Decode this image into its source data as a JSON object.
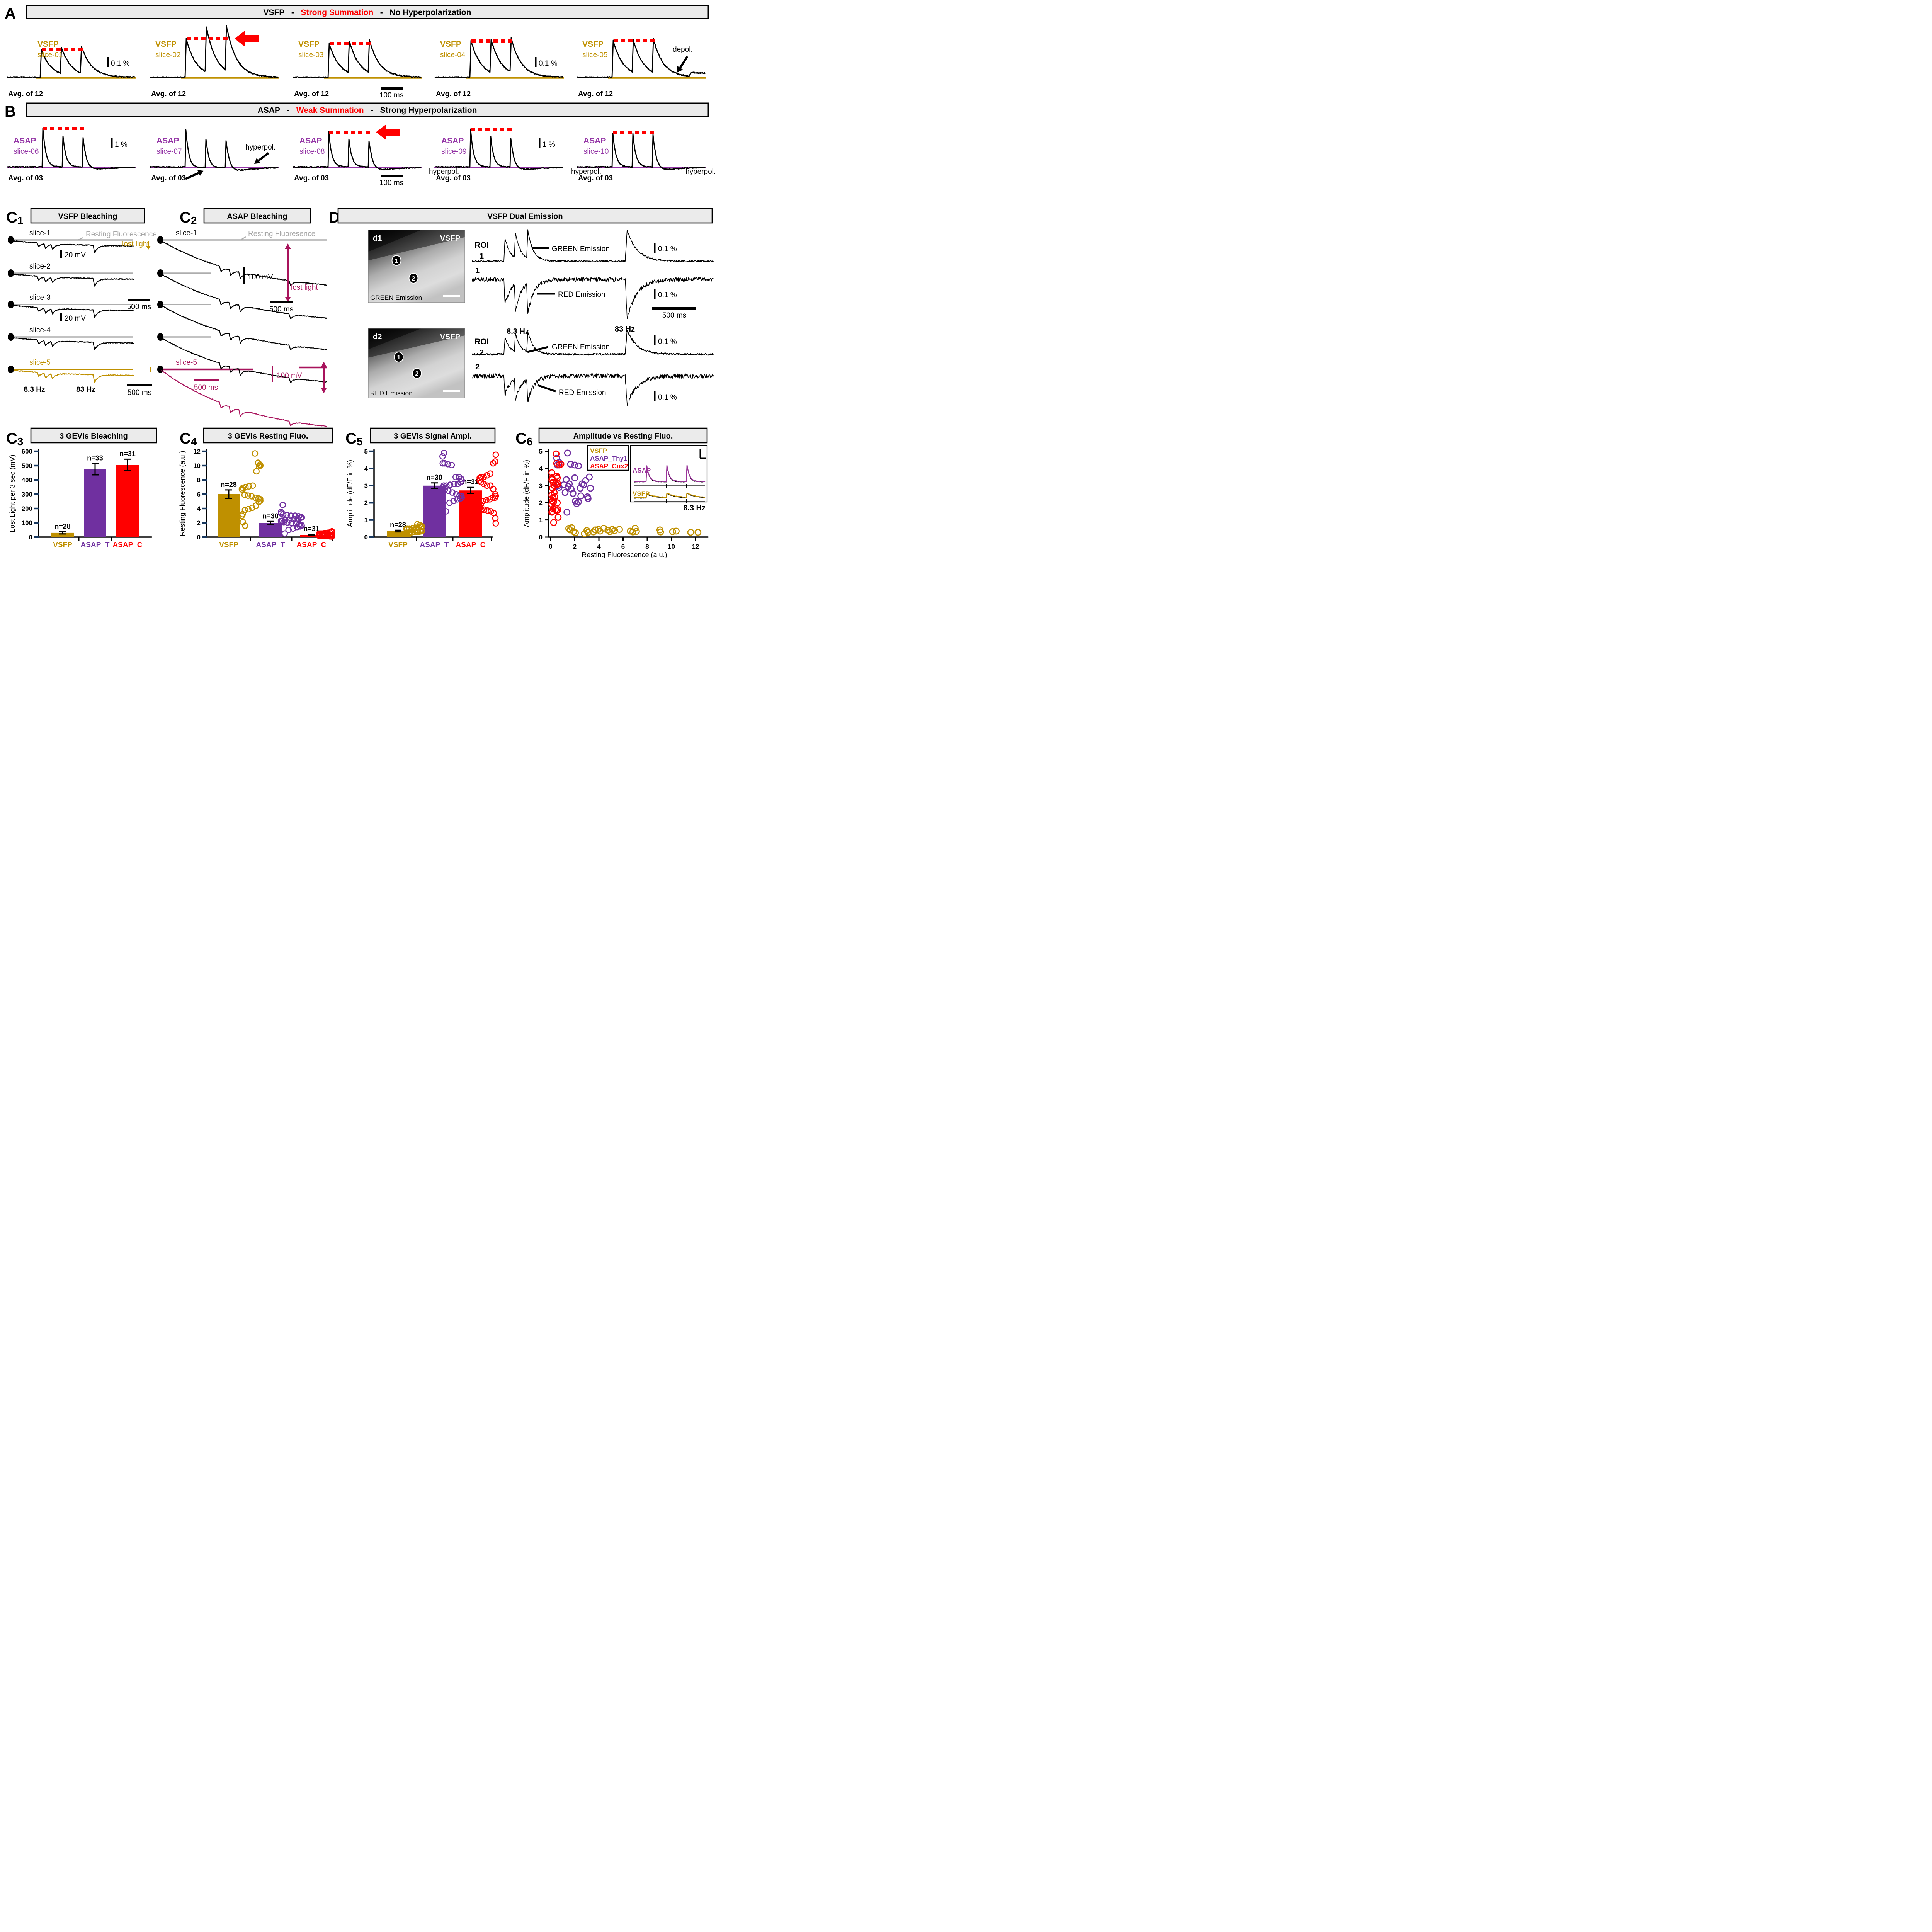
{
  "colors": {
    "vsfp_gold": "#BF9000",
    "asap_label_purple": "#9333A5",
    "asap_bar_purple": "#7030A0",
    "asap_cux2_red": "#FF0000",
    "magenta": "#A8135C",
    "accent_red": "#FF0000",
    "resting_gray": "#ADADAD",
    "gray_text": "#A6A6A6",
    "header_bg": "#EBEBEB",
    "axis_tick_navy": "#17375E",
    "inset_asap_purple": "#993399",
    "black": "#000000",
    "white": "#FFFFFF"
  },
  "panelA": {
    "label": "A",
    "header_parts": [
      {
        "t": "VSFP",
        "color": "#000000"
      },
      {
        "t": "   -   ",
        "color": "#000000"
      },
      {
        "t": "Strong Summation",
        "color": "#FF0000"
      },
      {
        "t": "   -   ",
        "color": "#000000"
      },
      {
        "t": "No Hyperpolarization",
        "color": "#000000"
      }
    ],
    "cells": [
      {
        "gevi": "VSFP",
        "slice": "slice-01",
        "avg": "Avg. of 12",
        "amp_bar": "0.1 %"
      },
      {
        "gevi": "VSFP",
        "slice": "slice-02",
        "avg": "Avg. of 12",
        "red_arrow": true
      },
      {
        "gevi": "VSFP",
        "slice": "slice-03",
        "avg": "Avg. of 12",
        "time_bar": "100 ms"
      },
      {
        "gevi": "VSFP",
        "slice": "slice-04",
        "avg": "Avg. of 12",
        "amp_bar": "0.1 %"
      },
      {
        "gevi": "VSFP",
        "slice": "slice-05",
        "avg": "Avg. of 12",
        "annotation": "depol."
      }
    ]
  },
  "panelB": {
    "label": "B",
    "header_parts": [
      {
        "t": "ASAP",
        "color": "#000000"
      },
      {
        "t": "   -   ",
        "color": "#000000"
      },
      {
        "t": "Weak Summation",
        "color": "#FF0000"
      },
      {
        "t": "   -   ",
        "color": "#000000"
      },
      {
        "t": "Strong Hyperpolarization",
        "color": "#000000"
      }
    ],
    "cells": [
      {
        "gevi": "ASAP",
        "slice": "slice-06",
        "avg": "Avg. of 03",
        "amp_bar": "1 %"
      },
      {
        "gevi": "ASAP",
        "slice": "slice-07",
        "avg": "Avg. of 03",
        "annotation": "hyperpol."
      },
      {
        "gevi": "ASAP",
        "slice": "slice-08",
        "avg": "Avg. of 03",
        "annotation": "hyperpol.",
        "red_arrow": true,
        "time_bar": "100 ms"
      },
      {
        "gevi": "ASAP",
        "slice": "slice-09",
        "avg": "Avg. of 03",
        "annotation": "hyperpol.",
        "amp_bar": "1 %"
      },
      {
        "gevi": "ASAP",
        "slice": "slice-10",
        "avg": "Avg. of 03",
        "annotation": "hyperpol."
      }
    ]
  },
  "panelC1": {
    "label": "C",
    "sub": "1",
    "title": "VSFP Bleaching",
    "slices": [
      "slice-1",
      "slice-2",
      "slice-3",
      "slice-4",
      "slice-5"
    ],
    "resting": "Resting Fluorescence",
    "lost_light": "lost light",
    "scale_mv": "20 mV",
    "scale_ms": "500 ms",
    "freq_low": "8.3 Hz",
    "freq_high": "83 Hz"
  },
  "panelC2": {
    "label": "C",
    "sub": "2",
    "title": "ASAP Bleaching",
    "slice_top": "slice-1",
    "slice_bottom": "slice-5",
    "resting": "Resting Fluoresence",
    "lost_light": "lost light",
    "scale_mv": "100 mV",
    "scale_ms": "500 ms"
  },
  "panelD": {
    "label": "D",
    "title": "VSFP Dual Emission",
    "images": [
      {
        "tag": "d1",
        "gevi": "VSFP",
        "caption": "GREEN Emission"
      },
      {
        "tag": "d2",
        "gevi": "VSFP",
        "caption": "RED Emission"
      }
    ],
    "roi_word": "ROI",
    "rois": [
      "1",
      "2"
    ],
    "green": "GREEN Emission",
    "red": "RED Emission",
    "pct": "0.1 %",
    "ms": "500 ms",
    "freq_low": "8.3 Hz",
    "freq_high": "83 Hz"
  },
  "chart_data": [
    {
      "id": "C3",
      "label": "C",
      "sub": "3",
      "type": "bar",
      "title": "3 GEVIs Bleaching",
      "ylabel": "Lost Light per 3 sec (mV)",
      "ylim": [
        0,
        600
      ],
      "yticks": [
        "0",
        "100",
        "200",
        "300",
        "400",
        "500",
        "600"
      ],
      "categories": [
        "VSFP",
        "ASAP_T",
        "ASAP_C"
      ],
      "cat_colors": [
        "#BF9000",
        "#7030A0",
        "#FF0000"
      ],
      "values": [
        30,
        475,
        505
      ],
      "errors": [
        8,
        40,
        40
      ],
      "n_labels": [
        "n=28",
        "n=33",
        "n=31"
      ]
    },
    {
      "id": "C4",
      "label": "C",
      "sub": "4",
      "type": "bar+scatter",
      "title": "3 GEVIs Resting Fluo.",
      "ylabel": "Resting Fluorescence (a.u.)",
      "ylim": [
        0,
        12
      ],
      "yticks": [
        "0",
        "2",
        "4",
        "6",
        "8",
        "10",
        "12"
      ],
      "categories": [
        "VSFP",
        "ASAP_T",
        "ASAP_C"
      ],
      "cat_colors": [
        "#BF9000",
        "#7030A0",
        "#FF0000"
      ],
      "values": [
        6,
        2,
        0.3
      ],
      "errors": [
        0.6,
        0.2,
        0.1
      ],
      "n_labels": [
        "n=28",
        "n=30",
        "n=31"
      ],
      "points": [
        [
          11.7,
          10.4,
          10.15,
          10.0,
          9.9,
          9.2,
          7.2,
          7.1,
          7.0,
          6.9,
          6.7,
          6.6,
          5.9,
          5.8,
          5.7,
          5.5,
          5.4,
          5.3,
          5.1,
          4.9,
          4.4,
          4.1,
          3.9,
          3.8,
          3.2,
          3.0,
          2.1,
          1.6
        ],
        [
          4.5,
          3.5,
          3.3,
          3.2,
          3.1,
          3.0,
          3.0,
          2.9,
          2.8,
          2.75,
          2.7,
          2.6,
          2.5,
          2.45,
          2.4,
          2.3,
          2.25,
          2.2,
          2.1,
          2.05,
          2.0,
          1.9,
          1.8,
          1.7,
          1.6,
          1.5,
          1.4,
          1.2,
          1.0,
          0.5
        ],
        [
          0.8,
          0.7,
          0.65,
          0.6,
          0.55,
          0.5,
          0.5,
          0.45,
          0.45,
          0.4,
          0.4,
          0.38,
          0.35,
          0.35,
          0.3,
          0.3,
          0.3,
          0.28,
          0.25,
          0.25,
          0.22,
          0.2,
          0.2,
          0.2,
          0.18,
          0.15,
          0.15,
          0.12,
          0.1,
          0.1,
          0.08
        ]
      ]
    },
    {
      "id": "C5",
      "label": "C",
      "sub": "5",
      "type": "bar+scatter",
      "title": "3 GEVIs Signal Ampl.",
      "ylabel": "Amplitude (dF/F in %)",
      "ylim": [
        0,
        5
      ],
      "yticks": [
        "0",
        "1",
        "2",
        "3",
        "4",
        "5"
      ],
      "categories": [
        "VSFP",
        "ASAP_T",
        "ASAP_C"
      ],
      "cat_colors": [
        "#BF9000",
        "#7030A0",
        "#FF0000"
      ],
      "values": [
        0.35,
        3.0,
        2.72
      ],
      "errors": [
        0.05,
        0.16,
        0.18
      ],
      "n_labels": [
        "n=28",
        "n=30",
        "n=31"
      ],
      "points": [
        [
          0.75,
          0.7,
          0.65,
          0.62,
          0.6,
          0.58,
          0.55,
          0.52,
          0.5,
          0.5,
          0.48,
          0.45,
          0.45,
          0.42,
          0.4,
          0.4,
          0.38,
          0.35,
          0.35,
          0.33,
          0.3,
          0.3,
          0.28,
          0.25,
          0.25,
          0.22,
          0.2,
          0.18
        ],
        [
          4.9,
          4.7,
          4.3,
          4.3,
          4.25,
          4.2,
          3.5,
          3.5,
          3.4,
          3.3,
          3.2,
          3.1,
          3.1,
          3.05,
          3.0,
          3.0,
          2.9,
          2.9,
          2.8,
          2.7,
          2.6,
          2.5,
          2.4,
          2.4,
          2.3,
          2.25,
          2.2,
          2.1,
          2.0,
          1.5
        ],
        [
          4.8,
          4.4,
          4.3,
          3.7,
          3.6,
          3.5,
          3.5,
          3.45,
          3.3,
          3.2,
          3.1,
          3.0,
          3.0,
          2.8,
          2.5,
          2.4,
          2.3,
          2.3,
          2.2,
          2.15,
          2.1,
          1.9,
          1.8,
          1.7,
          1.6,
          1.6,
          1.55,
          1.5,
          1.4,
          1.1,
          0.8
        ]
      ]
    },
    {
      "id": "C6",
      "label": "C",
      "sub": "6",
      "type": "scatter",
      "title": "Amplitude vs Resting Fluo.",
      "xlabel": "Resting Fluorescence (a.u.)",
      "ylabel": "Amplitude (dF/F in %)",
      "xlim": [
        0,
        13
      ],
      "ylim": [
        0,
        5
      ],
      "xticks": [
        "0",
        "2",
        "4",
        "6",
        "8",
        "10",
        "12"
      ],
      "yticks": [
        "0",
        "1",
        "2",
        "3",
        "4",
        "5"
      ],
      "series": [
        {
          "name": "VSFP",
          "color": "#BF9000",
          "points": [
            [
              1.5,
              0.5
            ],
            [
              1.6,
              0.42
            ],
            [
              1.75,
              0.55
            ],
            [
              1.9,
              0.32
            ],
            [
              2.05,
              0.25
            ],
            [
              2.8,
              0.2
            ],
            [
              3.0,
              0.38
            ],
            [
              3.1,
              0.28
            ],
            [
              3.55,
              0.3
            ],
            [
              3.7,
              0.42
            ],
            [
              3.95,
              0.45
            ],
            [
              4.1,
              0.35
            ],
            [
              4.4,
              0.52
            ],
            [
              4.75,
              0.4
            ],
            [
              4.9,
              0.32
            ],
            [
              5.1,
              0.45
            ],
            [
              5.3,
              0.38
            ],
            [
              5.7,
              0.45
            ],
            [
              6.6,
              0.35
            ],
            [
              6.8,
              0.3
            ],
            [
              7.0,
              0.52
            ],
            [
              7.1,
              0.33
            ],
            [
              9.05,
              0.42
            ],
            [
              9.1,
              0.3
            ],
            [
              10.1,
              0.32
            ],
            [
              10.4,
              0.35
            ],
            [
              11.6,
              0.28
            ],
            [
              12.2,
              0.28
            ]
          ]
        },
        {
          "name": "ASAP_Thy1",
          "color": "#7030A0",
          "points": [
            [
              0.5,
              4.6
            ],
            [
              0.55,
              4.2
            ],
            [
              0.7,
              4.35
            ],
            [
              1.4,
              4.9
            ],
            [
              1.65,
              4.25
            ],
            [
              2.0,
              4.2
            ],
            [
              2.3,
              4.15
            ],
            [
              0.6,
              3.0
            ],
            [
              0.7,
              2.9
            ],
            [
              1.1,
              3.05
            ],
            [
              1.2,
              2.6
            ],
            [
              1.35,
              1.45
            ],
            [
              1.3,
              3.35
            ],
            [
              1.55,
              3.1
            ],
            [
              1.7,
              2.8
            ],
            [
              1.85,
              2.55
            ],
            [
              2.0,
              3.45
            ],
            [
              2.05,
              2.1
            ],
            [
              2.15,
              1.95
            ],
            [
              2.3,
              2.05
            ],
            [
              2.45,
              2.85
            ],
            [
              2.5,
              2.4
            ],
            [
              2.6,
              3.1
            ],
            [
              2.75,
              3.05
            ],
            [
              2.9,
              3.3
            ],
            [
              3.05,
              2.35
            ],
            [
              3.1,
              2.25
            ],
            [
              3.2,
              3.5
            ],
            [
              3.3,
              2.85
            ],
            [
              1.45,
              2.95
            ]
          ]
        },
        {
          "name": "ASAP_Cux2",
          "color": "#FF0000",
          "points": [
            [
              0.45,
              4.85
            ],
            [
              0.5,
              4.3
            ],
            [
              0.85,
              4.25
            ],
            [
              0.1,
              3.75
            ],
            [
              0.12,
              3.45
            ],
            [
              0.1,
              3.35
            ],
            [
              0.2,
              3.2
            ],
            [
              0.3,
              3.0
            ],
            [
              0.5,
              3.55
            ],
            [
              0.55,
              3.45
            ],
            [
              0.5,
              3.05
            ],
            [
              0.6,
              3.1
            ],
            [
              0.15,
              2.85
            ],
            [
              0.1,
              2.45
            ],
            [
              0.2,
              2.3
            ],
            [
              0.35,
              2.35
            ],
            [
              0.15,
              2.1
            ],
            [
              0.25,
              2.05
            ],
            [
              0.1,
              1.9
            ],
            [
              0.2,
              1.65
            ],
            [
              0.4,
              1.6
            ],
            [
              0.6,
              1.6
            ],
            [
              0.15,
              1.5
            ],
            [
              0.1,
              1.45
            ],
            [
              0.5,
              1.55
            ],
            [
              0.62,
              1.15
            ],
            [
              0.25,
              0.85
            ],
            [
              0.4,
              3.1
            ],
            [
              0.3,
              2.6
            ],
            [
              0.55,
              2.0
            ],
            [
              0.7,
              4.2
            ]
          ]
        }
      ],
      "inset": {
        "trace_labels": [
          "ASAP",
          "VSFP"
        ],
        "freq": "8.3 Hz"
      }
    }
  ]
}
